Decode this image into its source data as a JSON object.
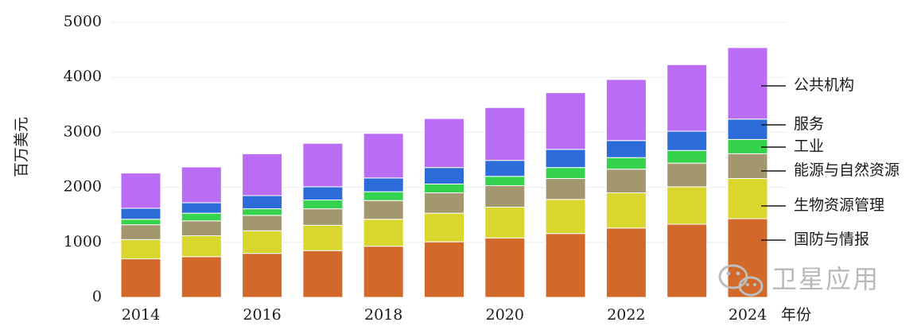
{
  "chart_data": {
    "type": "bar",
    "stacked": true,
    "title": "",
    "xlabel": "年份",
    "ylabel": "百万美元",
    "ylim": [
      0,
      5000
    ],
    "yticks": [
      0,
      1000,
      2000,
      3000,
      4000,
      5000
    ],
    "categories": [
      "2014",
      "2015",
      "2016",
      "2017",
      "2018",
      "2019",
      "2020",
      "2021",
      "2022",
      "2023",
      "2024"
    ],
    "xtick_labels": [
      "2014",
      "",
      "2016",
      "",
      "2018",
      "",
      "2020",
      "",
      "2022",
      "",
      "2024"
    ],
    "grid": false,
    "legend_placement": "right (labels with leader lines)",
    "series": [
      {
        "name": "国防与情报",
        "color": "#d2692a",
        "values": [
          700,
          740,
          800,
          850,
          930,
          1010,
          1080,
          1160,
          1260,
          1330,
          1430
        ]
      },
      {
        "name": "生物资源管理",
        "color": "#d9d62e",
        "values": [
          350,
          380,
          410,
          460,
          490,
          520,
          560,
          620,
          640,
          680,
          730
        ]
      },
      {
        "name": "能源与自然资源",
        "color": "#a39770",
        "values": [
          270,
          270,
          280,
          300,
          340,
          370,
          390,
          380,
          430,
          430,
          450
        ]
      },
      {
        "name": "工业",
        "color": "#35d24d",
        "values": [
          100,
          140,
          120,
          160,
          160,
          160,
          170,
          200,
          210,
          230,
          260
        ]
      },
      {
        "name": "服务",
        "color": "#2c6cd8",
        "values": [
          200,
          190,
          240,
          240,
          250,
          300,
          290,
          330,
          310,
          350,
          370
        ]
      },
      {
        "name": "公共机构",
        "color": "#bb6cf5",
        "values": [
          640,
          650,
          760,
          790,
          810,
          890,
          960,
          1030,
          1110,
          1210,
          1300
        ]
      }
    ]
  },
  "watermark": {
    "text": "卫星应用",
    "icon": "wechat-icon"
  }
}
